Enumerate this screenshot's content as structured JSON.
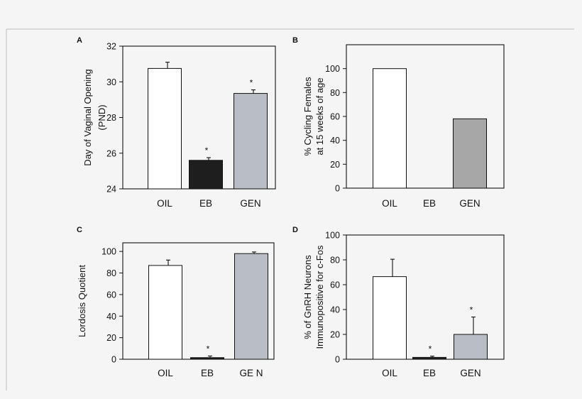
{
  "chart_data": [
    {
      "panel": "A",
      "type": "bar",
      "categories": [
        "OIL",
        "EB",
        "GEN"
      ],
      "values": [
        30.75,
        25.6,
        29.35
      ],
      "errors": [
        0.35,
        0.15,
        0.2
      ],
      "significance": [
        "",
        "*",
        "*"
      ],
      "colors": [
        "#ffffff",
        "#1e1e1e",
        "#b9bec6"
      ],
      "ylabel_lines": [
        "Day of Vaginal Opening",
        "(PND)"
      ],
      "ylim": [
        24,
        32
      ],
      "yticks": [
        "24",
        "26",
        "28",
        "30",
        "32"
      ]
    },
    {
      "panel": "B",
      "type": "bar",
      "categories": [
        "OIL",
        "EB",
        "GEN"
      ],
      "values": [
        100,
        0,
        58
      ],
      "errors": [
        0,
        0,
        0
      ],
      "significance": [
        "",
        "",
        ""
      ],
      "colors": [
        "#ffffff",
        "#1e1e1e",
        "#a7a7a7"
      ],
      "ylabel_lines": [
        "% Cycling Females",
        "at 15 weeks of age"
      ],
      "ylim": [
        0,
        120
      ],
      "yticks": [
        "0",
        "20",
        "40",
        "60",
        "80",
        "100"
      ]
    },
    {
      "panel": "C",
      "type": "bar",
      "categories": [
        "OIL",
        "EB",
        "GE N"
      ],
      "values": [
        87,
        1.5,
        98
      ],
      "errors": [
        5,
        1.5,
        1.5
      ],
      "significance": [
        "",
        "*",
        ""
      ],
      "colors": [
        "#ffffff",
        "#1e1e1e",
        "#b9bec6"
      ],
      "ylabel_lines": [
        "Lordosis Quotient"
      ],
      "ylim": [
        0,
        108
      ],
      "yticks": [
        "0",
        "20",
        "40",
        "60",
        "80",
        "100"
      ]
    },
    {
      "panel": "D",
      "type": "bar",
      "categories": [
        "OIL",
        "EB",
        "GEN"
      ],
      "values": [
        66.5,
        1.5,
        20
      ],
      "errors": [
        14,
        1,
        14
      ],
      "significance": [
        "",
        "*",
        "*"
      ],
      "colors": [
        "#ffffff",
        "#1e1e1e",
        "#b9bec6"
      ],
      "ylabel_lines": [
        "% of GnRH Neurons",
        "Immunopositive for c-Fos"
      ],
      "ylim": [
        0,
        100
      ],
      "yticks": [
        "0",
        "20",
        "40",
        "60",
        "80",
        "100"
      ]
    }
  ]
}
